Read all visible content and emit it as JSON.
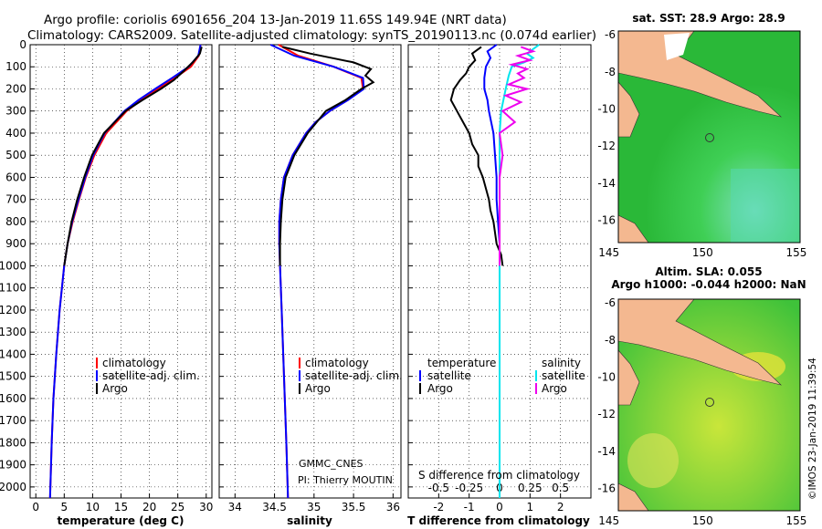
{
  "header": {
    "line1": "Argo profile: coriolis 6901656_204 13-Jan-2019 11.65S 149.94E (NRT data)",
    "line2": "Climatology: CARS2009. Satellite-adjusted climatology: synTS_20190113.nc (0.074d earlier)"
  },
  "colors": {
    "climatology": "#ff0000",
    "satellite": "#0000ff",
    "argo": "#000000",
    "sal_satellite": "#00e5ee",
    "sal_argo": "#ee00ee",
    "land": "#f4b890",
    "ocean": "#2ec82e"
  },
  "chart_data": [
    {
      "type": "line",
      "id": "temperature",
      "xlabel": "temperature (deg C)",
      "ylabel": "",
      "xlim": [
        -1,
        31
      ],
      "ylim": [
        2050,
        0
      ],
      "xticks": [
        0,
        5,
        10,
        15,
        20,
        25,
        30
      ],
      "yticks": [
        0,
        100,
        200,
        300,
        400,
        500,
        600,
        700,
        800,
        900,
        1000,
        1100,
        1200,
        1300,
        1400,
        1500,
        1600,
        1700,
        1800,
        1900,
        2000
      ],
      "legend": [
        "climatology",
        "satellite-adj. clim.",
        "Argo"
      ],
      "series": [
        {
          "name": "climatology",
          "color": "#ff0000",
          "depth": [
            0,
            50,
            100,
            150,
            200,
            250,
            300,
            400,
            500,
            600,
            700,
            800,
            900,
            1000,
            1200,
            1400,
            1600,
            1800,
            2050
          ],
          "values": [
            29.0,
            28.7,
            27.3,
            24.5,
            21.5,
            18.6,
            16.0,
            12.4,
            10.3,
            8.8,
            7.6,
            6.5,
            5.6,
            5.0,
            4.2,
            3.6,
            3.1,
            2.8,
            2.5
          ]
        },
        {
          "name": "satellite-adj. clim.",
          "color": "#0000ff",
          "depth": [
            0,
            50,
            100,
            150,
            200,
            250,
            300,
            400,
            500,
            600,
            700,
            800,
            900,
            1000,
            1200,
            1400,
            1600,
            1800,
            2050
          ],
          "values": [
            29.0,
            28.6,
            26.9,
            24.0,
            21.0,
            18.1,
            15.6,
            12.1,
            10.1,
            8.7,
            7.5,
            6.4,
            5.6,
            5.0,
            4.2,
            3.6,
            3.1,
            2.8,
            2.5
          ]
        },
        {
          "name": "Argo",
          "color": "#000000",
          "depth": [
            10,
            40,
            80,
            120,
            160,
            200,
            250,
            300,
            400,
            500,
            600,
            700,
            800,
            900,
            1000
          ],
          "values": [
            29.2,
            28.9,
            27.6,
            26.0,
            24.3,
            22.0,
            18.8,
            15.8,
            12.0,
            9.9,
            8.5,
            7.3,
            6.3,
            5.6,
            5.0
          ]
        }
      ]
    },
    {
      "type": "line",
      "id": "salinity",
      "xlabel": "salinity",
      "xlim": [
        33.8,
        36.1
      ],
      "ylim": [
        2050,
        0
      ],
      "xticks": [
        34,
        34.5,
        35,
        35.5,
        36
      ],
      "legend": [
        "climatology",
        "satellite-adj. clim.",
        "Argo"
      ],
      "annotation1": "GMMC_CNES",
      "annotation2": "PI: Thierry MOUTIN",
      "series": [
        {
          "name": "climatology",
          "color": "#ff0000",
          "depth": [
            0,
            50,
            100,
            150,
            200,
            250,
            300,
            350,
            400,
            500,
            600,
            700,
            800,
            900,
            1000,
            1200,
            1400,
            1600,
            1800,
            2050
          ],
          "values": [
            34.55,
            34.8,
            35.25,
            35.6,
            35.62,
            35.43,
            35.2,
            35.02,
            34.9,
            34.73,
            34.62,
            34.58,
            34.56,
            34.56,
            34.57,
            34.59,
            34.61,
            34.63,
            34.65,
            34.67
          ]
        },
        {
          "name": "satellite-adj. clim.",
          "color": "#0000ff",
          "depth": [
            0,
            50,
            100,
            150,
            200,
            250,
            300,
            350,
            400,
            500,
            600,
            700,
            800,
            900,
            1000,
            1200,
            1400,
            1600,
            1800,
            2050
          ],
          "values": [
            34.45,
            34.75,
            35.25,
            35.62,
            35.63,
            35.43,
            35.2,
            35.02,
            34.9,
            34.73,
            34.62,
            34.58,
            34.56,
            34.56,
            34.57,
            34.59,
            34.61,
            34.63,
            34.65,
            34.67
          ]
        },
        {
          "name": "Argo",
          "color": "#000000",
          "depth": [
            10,
            40,
            80,
            110,
            140,
            170,
            200,
            250,
            300,
            400,
            500,
            600,
            700,
            800,
            900,
            1000
          ],
          "values": [
            34.6,
            34.95,
            35.5,
            35.72,
            35.65,
            35.75,
            35.6,
            35.4,
            35.15,
            34.92,
            34.75,
            34.64,
            34.6,
            34.58,
            34.57,
            34.57
          ]
        }
      ]
    },
    {
      "type": "line",
      "id": "difference",
      "xlabel": "T difference from climatology",
      "xlabel2": "S difference from climatology",
      "xlim": [
        -3,
        3
      ],
      "ylim": [
        2050,
        0
      ],
      "xticks": [
        -2,
        -1,
        0,
        1,
        2
      ],
      "sticks_label": [
        "-0.5",
        "-0.25",
        "0",
        "0.25",
        "0.5"
      ],
      "sticks_value": [
        -2,
        -1,
        0,
        1,
        2
      ],
      "legend_t_title": "temperature",
      "legend_s_title": "salinity",
      "legend_left": [
        "satellite",
        "Argo"
      ],
      "legend_right": [
        "satellite",
        "Argo"
      ],
      "series": [
        {
          "name": "T satellite",
          "color": "#0000ff",
          "depth": [
            0,
            30,
            60,
            100,
            150,
            200,
            250,
            300,
            400,
            500,
            600,
            700,
            800,
            900,
            1000,
            2050
          ],
          "values": [
            -0.1,
            -0.4,
            -0.3,
            -0.45,
            -0.5,
            -0.5,
            -0.4,
            -0.35,
            -0.2,
            -0.15,
            -0.1,
            -0.1,
            -0.05,
            0,
            0,
            0
          ]
        },
        {
          "name": "T Argo",
          "color": "#000000",
          "depth": [
            10,
            40,
            70,
            100,
            130,
            160,
            200,
            250,
            300,
            350,
            400,
            450,
            500,
            550,
            600,
            650,
            700,
            750,
            800,
            850,
            900,
            950,
            1000
          ],
          "values": [
            -0.6,
            -0.9,
            -0.8,
            -1.0,
            -1.1,
            -1.3,
            -1.5,
            -1.6,
            -1.4,
            -1.2,
            -1.0,
            -0.9,
            -0.7,
            -0.7,
            -0.55,
            -0.45,
            -0.35,
            -0.3,
            -0.2,
            -0.15,
            -0.1,
            0.05,
            0.1
          ]
        },
        {
          "name": "S satellite",
          "color": "#00e5ee",
          "depth": [
            0,
            20,
            40,
            60,
            80,
            100,
            140,
            200,
            300,
            400,
            500,
            600,
            700,
            800,
            1000,
            2050
          ],
          "values": [
            1.3,
            1.1,
            0.9,
            1.1,
            0.8,
            0.4,
            0.3,
            0.2,
            0.05,
            0.0,
            0.0,
            0.0,
            0.0,
            0.0,
            0.0,
            0.0
          ]
        },
        {
          "name": "S Argo",
          "color": "#ee00ee",
          "depth": [
            10,
            30,
            50,
            70,
            90,
            110,
            130,
            150,
            180,
            200,
            230,
            260,
            300,
            350,
            400,
            500,
            600,
            700,
            800,
            900,
            1000
          ],
          "values": [
            0.7,
            1.1,
            0.6,
            1.0,
            0.4,
            0.9,
            0.6,
            0.8,
            0.3,
            0.9,
            0.2,
            0.7,
            0.1,
            0.5,
            0.0,
            0.1,
            0.0,
            0.0,
            0.0,
            0.0,
            0.0
          ]
        }
      ]
    }
  ],
  "maps": {
    "sst": {
      "title": "sat. SST: 28.9 Argo: 28.9",
      "xticks": [
        "145",
        "150",
        "155"
      ],
      "yticks": [
        "-6",
        "-8",
        "-10",
        "-12",
        "-14",
        "-16"
      ]
    },
    "sla": {
      "title1": "Altim. SLA: 0.055",
      "title2": "Argo h1000: -0.044 h2000: NaN",
      "xticks": [
        "145",
        "150",
        "155"
      ],
      "yticks": [
        "-6",
        "-8",
        "-10",
        "-12",
        "-14",
        "-16"
      ]
    },
    "credit": "©IMOS 23-Jan-2019 11:39:54"
  }
}
